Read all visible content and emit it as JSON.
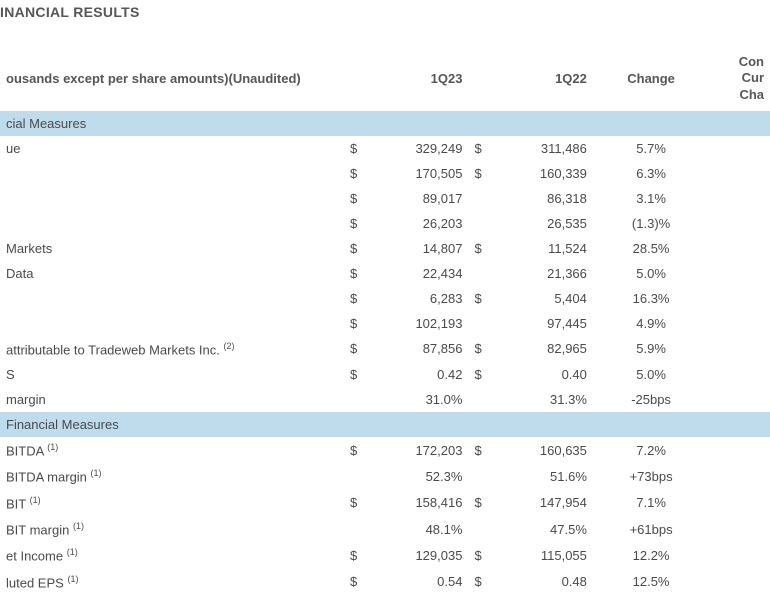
{
  "title": "INANCIAL RESULTS",
  "subhead": "ousands except per share amounts)(Unaudited)",
  "columns": {
    "c1": "1Q23",
    "c2": "1Q22",
    "c3": "Change",
    "cc1": "Con",
    "cc2": "Cur",
    "cc3": "Cha"
  },
  "section1": "cial Measures",
  "section2": "Financial Measures",
  "rows_gaap": [
    {
      "label": "ue",
      "d1": "$",
      "v1": "329,249",
      "d2": "$",
      "v2": "311,486",
      "chg": "5.7%"
    },
    {
      "label": "",
      "d1": "$",
      "v1": "170,505",
      "d2": "$",
      "v2": "160,339",
      "chg": "6.3%"
    },
    {
      "label": "",
      "d1": "$",
      "v1": "89,017",
      "d2": "",
      "v2": "86,318",
      "chg": "3.1%"
    },
    {
      "label": "",
      "d1": "$",
      "v1": "26,203",
      "d2": "",
      "v2": "26,535",
      "chg": "(1.3)%"
    },
    {
      "label": "Markets",
      "d1": "$",
      "v1": "14,807",
      "d2": "$",
      "v2": "11,524",
      "chg": "28.5%"
    },
    {
      "label": " Data",
      "d1": "$",
      "v1": "22,434",
      "d2": "",
      "v2": "21,366",
      "chg": "5.0%"
    },
    {
      "label": "",
      "d1": "$",
      "v1": "6,283",
      "d2": "$",
      "v2": "5,404",
      "chg": "16.3%"
    },
    {
      "label": "",
      "d1": "$",
      "v1": "102,193",
      "d2": "",
      "v2": "97,445",
      "chg": "4.9%"
    },
    {
      "label": " attributable to Tradeweb Markets Inc.",
      "sup": "(2)",
      "d1": "$",
      "v1": "87,856",
      "d2": "$",
      "v2": "82,965",
      "chg": "5.9%"
    },
    {
      "label": "S",
      "d1": "$",
      "v1": "0.42",
      "d2": "$",
      "v2": "0.40",
      "chg": "5.0%"
    },
    {
      "label": " margin",
      "d1": "",
      "v1": "31.0%",
      "d2": "",
      "v2": "31.3%",
      "chg": "-25bps"
    }
  ],
  "rows_nongaap": [
    {
      "label": "BITDA",
      "sup": "(1)",
      "d1": "$",
      "v1": "172,203",
      "d2": "$",
      "v2": "160,635",
      "chg": "7.2%"
    },
    {
      "label": "BITDA margin",
      "sup": "(1)",
      "d1": "",
      "v1": "52.3%",
      "d2": "",
      "v2": "51.6%",
      "chg": "+73bps"
    },
    {
      "label": "BIT",
      "sup": "(1)",
      "d1": "$",
      "v1": "158,416",
      "d2": "$",
      "v2": "147,954",
      "chg": "7.1%"
    },
    {
      "label": "BIT margin",
      "sup": "(1)",
      "d1": "",
      "v1": "48.1%",
      "d2": "",
      "v2": "47.5%",
      "chg": "+61bps"
    },
    {
      "label": "et Income",
      "sup": "(1)",
      "d1": "$",
      "v1": "129,035",
      "d2": "$",
      "v2": "115,055",
      "chg": "12.2%"
    },
    {
      "label": "luted EPS",
      "sup": "(1)",
      "d1": "$",
      "v1": "0.54",
      "d2": "$",
      "v2": "0.48",
      "chg": "12.5%"
    }
  ]
}
